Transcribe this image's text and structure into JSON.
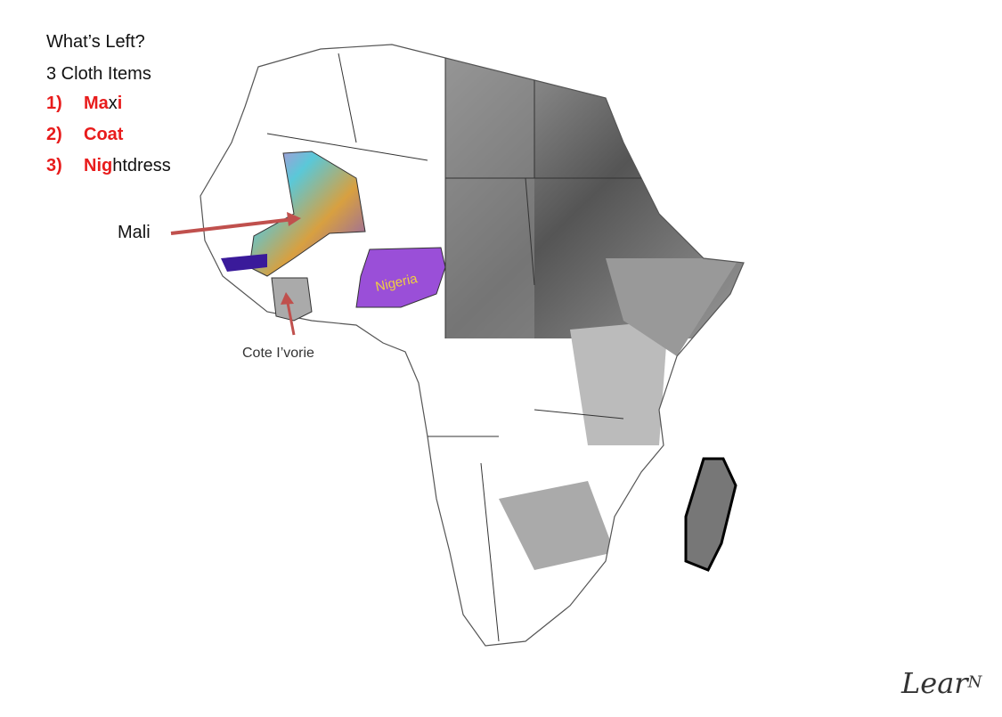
{
  "title": "What’s Left?",
  "subtitle": "3 Cloth Items",
  "items": [
    {
      "number": "1)",
      "parts": [
        {
          "text": "Ma",
          "highlight": true
        },
        {
          "text": "x",
          "highlight": false
        },
        {
          "text": "i",
          "highlight": true
        }
      ]
    },
    {
      "number": "2)",
      "parts": [
        {
          "text": "Coat",
          "highlight": true
        }
      ]
    },
    {
      "number": "3)",
      "parts": [
        {
          "text": "Nig",
          "highlight": true
        },
        {
          "text": "htdress",
          "highlight": false
        }
      ]
    }
  ],
  "labels": {
    "mali": "Mali",
    "nigeria": "Nigeria",
    "cote": "Cote I’vorie"
  },
  "logo": {
    "main": "Lear",
    "sup": "N"
  }
}
